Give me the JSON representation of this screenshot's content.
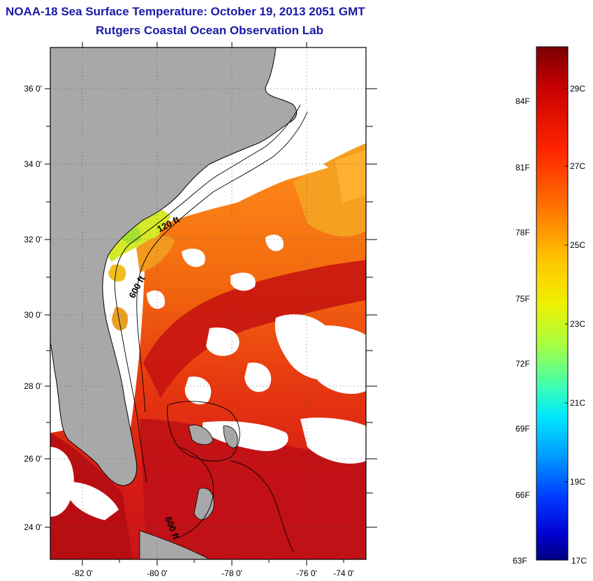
{
  "header": {
    "title": "NOAA-18 Sea Surface Temperature:  October 19, 2013 2051 GMT",
    "subtitle": "Rutgers Coastal Ocean Observation Lab"
  },
  "map": {
    "lat_labels": [
      "36 0'",
      "34 0'",
      "32 0'",
      "30 0'",
      "28 0'",
      "26 0'",
      "24 0'"
    ],
    "lon_labels": [
      "-82 0'",
      "-80 0'",
      "-78 0'",
      "-76 0'",
      "-74 0'"
    ],
    "contour_labels": {
      "north": "120 ft",
      "middle": "600 ft",
      "south": "600 ft"
    }
  },
  "legend": {
    "fahrenheit": [
      "84F",
      "81F",
      "78F",
      "75F",
      "72F",
      "69F",
      "66F",
      "63F"
    ],
    "celsius": [
      "29C",
      "27C",
      "25C",
      "23C",
      "21C",
      "19C",
      "17C"
    ]
  }
}
